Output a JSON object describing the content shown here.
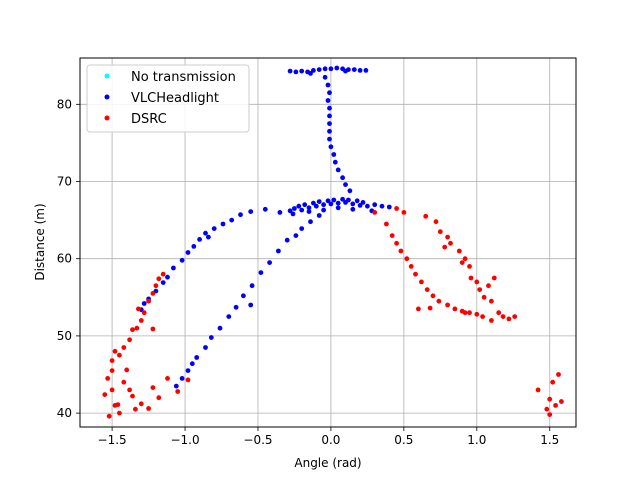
{
  "chart_data": {
    "type": "scatter",
    "title": "",
    "xlabel": "Angle (rad)",
    "ylabel": "Distance (m)",
    "xlim": [
      -1.72,
      1.68
    ],
    "ylim": [
      38.2,
      86.0
    ],
    "xticks": [
      -1.5,
      -1.0,
      -0.5,
      0.0,
      0.5,
      1.0,
      1.5
    ],
    "xtick_labels": [
      "−1.5",
      "−1.0",
      "−0.5",
      "0.0",
      "0.5",
      "1.0",
      "1.5"
    ],
    "yticks": [
      40,
      50,
      60,
      70,
      80
    ],
    "ytick_labels": [
      "40",
      "50",
      "60",
      "70",
      "80"
    ],
    "grid": true,
    "legend": "upper-left",
    "series": [
      {
        "name": "No transmission",
        "color": "#00ffff",
        "points": []
      },
      {
        "name": "VLCHeadlight",
        "color": "#0000ff",
        "points": [
          [
            -0.28,
            84.3
          ],
          [
            -0.24,
            84.2
          ],
          [
            -0.2,
            84.3
          ],
          [
            -0.16,
            84.2
          ],
          [
            -0.12,
            84.4
          ],
          [
            -0.08,
            84.5
          ],
          [
            -0.04,
            84.6
          ],
          [
            0.0,
            84.6
          ],
          [
            0.04,
            84.7
          ],
          [
            0.08,
            84.6
          ],
          [
            0.12,
            84.5
          ],
          [
            0.16,
            84.5
          ],
          [
            0.2,
            84.4
          ],
          [
            0.24,
            84.4
          ],
          [
            -0.14,
            84.0
          ],
          [
            0.1,
            84.3
          ],
          [
            -0.04,
            83.5
          ],
          [
            -0.02,
            82.5
          ],
          [
            -0.01,
            81.5
          ],
          [
            -0.02,
            80.5
          ],
          [
            -0.01,
            79.5
          ],
          [
            -0.01,
            78.5
          ],
          [
            -0.01,
            77.5
          ],
          [
            -0.01,
            76.5
          ],
          [
            -0.01,
            75.5
          ],
          [
            0.0,
            74.5
          ],
          [
            0.02,
            73.5
          ],
          [
            0.03,
            72.5
          ],
          [
            0.05,
            71.5
          ],
          [
            0.08,
            70.5
          ],
          [
            0.1,
            69.6
          ],
          [
            0.13,
            68.8
          ],
          [
            -0.28,
            66.2
          ],
          [
            -0.25,
            66.5
          ],
          [
            -0.22,
            66.8
          ],
          [
            -0.2,
            66.3
          ],
          [
            -0.18,
            67.0
          ],
          [
            -0.15,
            66.6
          ],
          [
            -0.12,
            67.2
          ],
          [
            -0.1,
            66.8
          ],
          [
            -0.08,
            67.4
          ],
          [
            -0.05,
            67.0
          ],
          [
            -0.02,
            67.5
          ],
          [
            0.0,
            67.1
          ],
          [
            0.02,
            67.6
          ],
          [
            0.05,
            67.2
          ],
          [
            0.08,
            67.7
          ],
          [
            0.1,
            67.3
          ],
          [
            0.12,
            67.6
          ],
          [
            0.15,
            67.1
          ],
          [
            0.18,
            67.5
          ],
          [
            0.2,
            66.9
          ],
          [
            0.22,
            67.3
          ],
          [
            0.25,
            66.8
          ],
          [
            0.3,
            67.0
          ],
          [
            0.35,
            66.8
          ],
          [
            0.4,
            66.7
          ],
          [
            -0.26,
            65.8
          ],
          [
            -0.15,
            66.1
          ],
          [
            -0.05,
            66.3
          ],
          [
            0.05,
            66.6
          ],
          [
            0.15,
            66.4
          ],
          [
            0.28,
            66.2
          ],
          [
            -0.35,
            66.0
          ],
          [
            -0.45,
            66.4
          ],
          [
            -0.55,
            66.1
          ],
          [
            -0.62,
            65.7
          ],
          [
            -0.68,
            65.0
          ],
          [
            -0.74,
            64.5
          ],
          [
            -0.8,
            63.9
          ],
          [
            -0.86,
            63.3
          ],
          [
            -0.9,
            62.5
          ],
          [
            -0.94,
            61.6
          ],
          [
            -0.98,
            60.8
          ],
          [
            -1.02,
            59.8
          ],
          [
            -1.08,
            58.8
          ],
          [
            -1.12,
            57.6
          ],
          [
            -1.15,
            56.9
          ],
          [
            -1.2,
            55.8
          ],
          [
            -1.25,
            54.8
          ],
          [
            -1.28,
            54.2
          ],
          [
            -1.3,
            53.4
          ],
          [
            -0.84,
            62.8
          ],
          [
            -0.08,
            65.6
          ],
          [
            -0.14,
            64.8
          ],
          [
            -0.2,
            63.9
          ],
          [
            -0.24,
            63.0
          ],
          [
            -0.3,
            62.4
          ],
          [
            -0.36,
            61.0
          ],
          [
            -0.42,
            59.5
          ],
          [
            -0.48,
            58.2
          ],
          [
            -0.54,
            56.5
          ],
          [
            -0.6,
            55.2
          ],
          [
            -0.65,
            53.7
          ],
          [
            -0.7,
            52.5
          ],
          [
            -0.76,
            51.0
          ],
          [
            -0.82,
            49.8
          ],
          [
            -0.86,
            48.5
          ],
          [
            -0.92,
            47.2
          ],
          [
            -0.98,
            45.5
          ],
          [
            -1.02,
            44.5
          ],
          [
            -1.06,
            43.5
          ],
          [
            -0.55,
            54.0
          ],
          [
            -0.95,
            46.4
          ]
        ]
      },
      {
        "name": "DSRC",
        "color": "#ff0000",
        "points": [
          [
            -1.52,
            39.6
          ],
          [
            -1.48,
            41.0
          ],
          [
            -1.5,
            43.0
          ],
          [
            -1.53,
            44.5
          ],
          [
            -1.5,
            45.5
          ],
          [
            -1.55,
            42.4
          ],
          [
            -1.45,
            40.0
          ],
          [
            -1.46,
            41.1
          ],
          [
            -1.42,
            44.0
          ],
          [
            -1.4,
            45.6
          ],
          [
            -1.38,
            43.0
          ],
          [
            -1.36,
            42.2
          ],
          [
            -1.34,
            40.5
          ],
          [
            -1.3,
            41.2
          ],
          [
            -1.25,
            40.6
          ],
          [
            -1.18,
            42.0
          ],
          [
            -1.12,
            44.5
          ],
          [
            -1.05,
            42.8
          ],
          [
            -0.98,
            44.3
          ],
          [
            -1.22,
            43.3
          ],
          [
            -1.5,
            46.8
          ],
          [
            -1.48,
            48.0
          ],
          [
            -1.45,
            47.5
          ],
          [
            -1.42,
            48.5
          ],
          [
            -1.38,
            49.5
          ],
          [
            -1.36,
            50.8
          ],
          [
            -1.33,
            51.0
          ],
          [
            -1.3,
            52.0
          ],
          [
            -1.28,
            53.0
          ],
          [
            -1.32,
            53.5
          ],
          [
            -1.25,
            54.5
          ],
          [
            -1.22,
            55.5
          ],
          [
            -1.2,
            56.5
          ],
          [
            -1.18,
            57.4
          ],
          [
            -1.15,
            58.0
          ],
          [
            -1.22,
            50.9
          ],
          [
            0.3,
            66.0
          ],
          [
            0.38,
            64.5
          ],
          [
            0.42,
            63.0
          ],
          [
            0.45,
            62.0
          ],
          [
            0.48,
            61.0
          ],
          [
            0.52,
            60.0
          ],
          [
            0.55,
            59.0
          ],
          [
            0.58,
            58.0
          ],
          [
            0.62,
            57.0
          ],
          [
            0.66,
            56.0
          ],
          [
            0.7,
            55.2
          ],
          [
            0.74,
            54.5
          ],
          [
            0.8,
            54.0
          ],
          [
            0.85,
            53.5
          ],
          [
            0.9,
            53.2
          ],
          [
            0.95,
            53.0
          ],
          [
            1.0,
            52.8
          ],
          [
            0.45,
            66.5
          ],
          [
            0.5,
            66.0
          ],
          [
            0.65,
            65.5
          ],
          [
            0.72,
            64.8
          ],
          [
            0.75,
            63.5
          ],
          [
            0.8,
            62.8
          ],
          [
            0.78,
            61.5
          ],
          [
            0.82,
            62.0
          ],
          [
            0.88,
            61.0
          ],
          [
            0.9,
            59.5
          ],
          [
            0.92,
            60.0
          ],
          [
            0.95,
            59.0
          ],
          [
            0.96,
            57.5
          ],
          [
            1.0,
            57.0
          ],
          [
            1.02,
            56.0
          ],
          [
            1.05,
            55.0
          ],
          [
            1.08,
            56.5
          ],
          [
            1.1,
            54.5
          ],
          [
            1.12,
            57.5
          ],
          [
            1.15,
            53.0
          ],
          [
            1.18,
            52.5
          ],
          [
            1.22,
            52.2
          ],
          [
            1.26,
            52.5
          ],
          [
            1.1,
            52.0
          ],
          [
            1.04,
            52.5
          ],
          [
            0.6,
            53.5
          ],
          [
            0.68,
            53.6
          ],
          [
            0.92,
            53.0
          ],
          [
            1.42,
            43.0
          ],
          [
            1.48,
            40.5
          ],
          [
            1.5,
            41.8
          ],
          [
            1.52,
            44.0
          ],
          [
            1.54,
            41.0
          ],
          [
            1.56,
            45.0
          ],
          [
            1.58,
            41.5
          ],
          [
            1.5,
            39.8
          ]
        ]
      }
    ]
  }
}
